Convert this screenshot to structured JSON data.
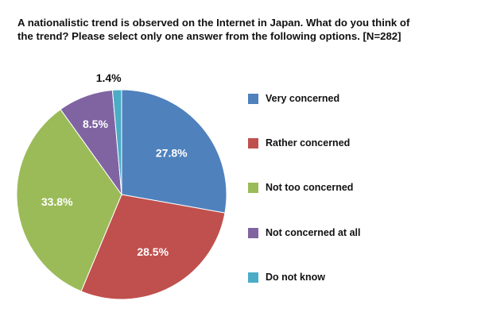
{
  "title": {
    "line1": "A nationalistic trend is observed on the Internet in Japan. What do you think of",
    "line2": "the trend? Please select only one answer from the following options. [N=282]"
  },
  "legend": {
    "position": "right",
    "items": [
      {
        "label": "Very concerned",
        "color": "#4F81BD"
      },
      {
        "label": "Rather concerned",
        "color": "#C0504D"
      },
      {
        "label": "Not too concerned",
        "color": "#9BBB59"
      },
      {
        "label": "Not concerned at all",
        "color": "#8064A2"
      },
      {
        "label": "Do not know",
        "color": "#4BACC6"
      }
    ]
  },
  "chart_data": {
    "type": "pie",
    "title": "A nationalistic trend is observed on the Internet in Japan. What do you think of the trend? Please select only one answer from the following options. [N=282]",
    "categories": [
      "Very concerned",
      "Rather concerned",
      "Not too concerned",
      "Not concerned at all",
      "Do not know"
    ],
    "values": [
      27.8,
      28.5,
      33.8,
      8.5,
      1.4
    ],
    "labels": [
      "27.8%",
      "28.5%",
      "33.8%",
      "8.5%",
      "1.4%"
    ],
    "colors": [
      "#4F81BD",
      "#C0504D",
      "#9BBB59",
      "#8064A2",
      "#4BACC6"
    ],
    "start_angle": "12 o'clock, clockwise",
    "legend_position": "right",
    "n": 282
  }
}
